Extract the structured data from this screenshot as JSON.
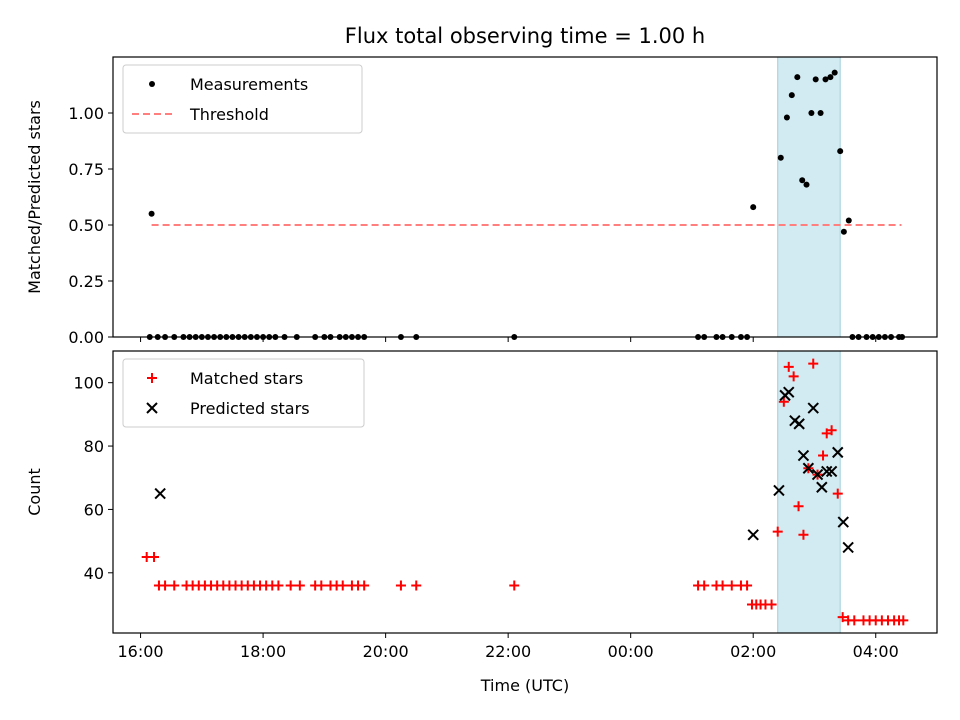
{
  "chart_data": {
    "type": "scatter",
    "title": "Flux total observing time = 1.00 h",
    "xlabel": "Time (UTC)",
    "x_unit": "hours since 16:00 UTC",
    "xlim": [
      -0.45,
      13.0
    ],
    "x_ticks": [
      {
        "value": 0,
        "label": "16:00"
      },
      {
        "value": 2,
        "label": "18:00"
      },
      {
        "value": 4,
        "label": "20:00"
      },
      {
        "value": 6,
        "label": "22:00"
      },
      {
        "value": 8,
        "label": "00:00"
      },
      {
        "value": 10,
        "label": "02:00"
      },
      {
        "value": 12,
        "label": "04:00"
      }
    ],
    "shaded_span": [
      10.4,
      11.42
    ],
    "shade_color": "#add8e6",
    "panels": [
      {
        "id": "ratio",
        "ylabel": "Matched/Predicted stars",
        "ylim": [
          0,
          1.25
        ],
        "y_ticks": [
          {
            "value": 0,
            "label": "0.00"
          },
          {
            "value": 0.25,
            "label": "0.25"
          },
          {
            "value": 0.5,
            "label": "0.50"
          },
          {
            "value": 0.75,
            "label": "0.75"
          },
          {
            "value": 1.0,
            "label": "1.00"
          }
        ],
        "legend": [
          {
            "label": "Measurements",
            "marker": "dot",
            "color": "#000000"
          },
          {
            "label": "Threshold",
            "marker": "dash",
            "color": "#ff7f7f"
          }
        ],
        "threshold": {
          "y": 0.5,
          "x_range": [
            0.18,
            12.42
          ],
          "color": "#ff7f7f"
        },
        "series": [
          {
            "name": "Measurements",
            "marker": "dot",
            "color": "#000000",
            "points": [
              [
                0.18,
                0.55
              ],
              [
                0.15,
                0
              ],
              [
                0.28,
                0
              ],
              [
                0.4,
                0
              ],
              [
                0.55,
                0
              ],
              [
                0.7,
                0
              ],
              [
                0.8,
                0
              ],
              [
                0.9,
                0
              ],
              [
                1.0,
                0
              ],
              [
                1.1,
                0
              ],
              [
                1.2,
                0
              ],
              [
                1.3,
                0
              ],
              [
                1.4,
                0
              ],
              [
                1.5,
                0
              ],
              [
                1.6,
                0
              ],
              [
                1.7,
                0
              ],
              [
                1.8,
                0
              ],
              [
                1.9,
                0
              ],
              [
                2.0,
                0
              ],
              [
                2.1,
                0
              ],
              [
                2.2,
                0
              ],
              [
                2.35,
                0
              ],
              [
                2.55,
                0
              ],
              [
                2.85,
                0
              ],
              [
                3.0,
                0
              ],
              [
                3.1,
                0
              ],
              [
                3.25,
                0
              ],
              [
                3.35,
                0
              ],
              [
                3.45,
                0
              ],
              [
                3.55,
                0
              ],
              [
                3.65,
                0
              ],
              [
                4.25,
                0
              ],
              [
                4.5,
                0
              ],
              [
                6.1,
                0
              ],
              [
                9.1,
                0
              ],
              [
                9.2,
                0
              ],
              [
                9.4,
                0
              ],
              [
                9.5,
                0
              ],
              [
                9.65,
                0
              ],
              [
                9.8,
                0
              ],
              [
                9.9,
                0
              ],
              [
                10.0,
                0.58
              ],
              [
                10.45,
                0.8
              ],
              [
                10.55,
                0.98
              ],
              [
                10.63,
                1.08
              ],
              [
                10.72,
                1.16
              ],
              [
                10.8,
                0.7
              ],
              [
                10.87,
                0.68
              ],
              [
                10.95,
                1.0
              ],
              [
                11.02,
                1.15
              ],
              [
                11.1,
                1.0
              ],
              [
                11.18,
                1.15
              ],
              [
                11.26,
                1.16
              ],
              [
                11.33,
                1.18
              ],
              [
                11.42,
                0.83
              ],
              [
                11.48,
                0.47
              ],
              [
                11.56,
                0.52
              ],
              [
                11.62,
                0
              ],
              [
                11.72,
                0
              ],
              [
                11.85,
                0
              ],
              [
                11.95,
                0
              ],
              [
                12.05,
                0
              ],
              [
                12.15,
                0
              ],
              [
                12.25,
                0
              ],
              [
                12.38,
                0
              ],
              [
                12.43,
                0
              ]
            ]
          }
        ]
      },
      {
        "id": "counts",
        "ylabel": "Count",
        "ylim": [
          21,
          110
        ],
        "y_ticks": [
          {
            "value": 40,
            "label": "40"
          },
          {
            "value": 60,
            "label": "60"
          },
          {
            "value": 80,
            "label": "80"
          },
          {
            "value": 100,
            "label": "100"
          }
        ],
        "legend": [
          {
            "label": "Matched stars",
            "marker": "plus",
            "color": "#ff0000"
          },
          {
            "label": "Predicted stars",
            "marker": "x",
            "color": "#000000"
          }
        ],
        "series": [
          {
            "name": "Matched stars",
            "marker": "plus",
            "color": "#ff0000",
            "points": [
              [
                0.1,
                45
              ],
              [
                0.22,
                45
              ],
              [
                0.3,
                36
              ],
              [
                0.4,
                36
              ],
              [
                0.55,
                36
              ],
              [
                0.75,
                36
              ],
              [
                0.85,
                36
              ],
              [
                0.95,
                36
              ],
              [
                1.05,
                36
              ],
              [
                1.15,
                36
              ],
              [
                1.25,
                36
              ],
              [
                1.35,
                36
              ],
              [
                1.45,
                36
              ],
              [
                1.55,
                36
              ],
              [
                1.65,
                36
              ],
              [
                1.75,
                36
              ],
              [
                1.85,
                36
              ],
              [
                1.95,
                36
              ],
              [
                2.05,
                36
              ],
              [
                2.15,
                36
              ],
              [
                2.25,
                36
              ],
              [
                2.45,
                36
              ],
              [
                2.6,
                36
              ],
              [
                2.85,
                36
              ],
              [
                2.95,
                36
              ],
              [
                3.1,
                36
              ],
              [
                3.2,
                36
              ],
              [
                3.3,
                36
              ],
              [
                3.45,
                36
              ],
              [
                3.55,
                36
              ],
              [
                3.65,
                36
              ],
              [
                4.25,
                36
              ],
              [
                4.5,
                36
              ],
              [
                6.1,
                36
              ],
              [
                9.1,
                36
              ],
              [
                9.2,
                36
              ],
              [
                9.4,
                36
              ],
              [
                9.5,
                36
              ],
              [
                9.65,
                36
              ],
              [
                9.8,
                36
              ],
              [
                9.9,
                36
              ],
              [
                9.98,
                30
              ],
              [
                10.05,
                30
              ],
              [
                10.12,
                30
              ],
              [
                10.2,
                30
              ],
              [
                10.3,
                30
              ],
              [
                10.4,
                53
              ],
              [
                10.5,
                94
              ],
              [
                10.58,
                105
              ],
              [
                10.66,
                102
              ],
              [
                10.74,
                61
              ],
              [
                10.82,
                52
              ],
              [
                10.9,
                73
              ],
              [
                10.98,
                106
              ],
              [
                11.05,
                71
              ],
              [
                11.14,
                77
              ],
              [
                11.2,
                84
              ],
              [
                11.28,
                85
              ],
              [
                11.38,
                65
              ],
              [
                11.46,
                26
              ],
              [
                11.55,
                25
              ],
              [
                11.65,
                25
              ],
              [
                11.8,
                25
              ],
              [
                11.9,
                25
              ],
              [
                12.0,
                25
              ],
              [
                12.1,
                25
              ],
              [
                12.2,
                25
              ],
              [
                12.3,
                25
              ],
              [
                12.38,
                25
              ],
              [
                12.45,
                25
              ]
            ]
          },
          {
            "name": "Predicted stars",
            "marker": "x",
            "color": "#000000",
            "points": [
              [
                0.32,
                65
              ],
              [
                10.0,
                52
              ],
              [
                10.42,
                66
              ],
              [
                10.52,
                96
              ],
              [
                10.58,
                97
              ],
              [
                10.68,
                88
              ],
              [
                10.75,
                87
              ],
              [
                10.82,
                77
              ],
              [
                10.9,
                73
              ],
              [
                10.98,
                92
              ],
              [
                11.05,
                71
              ],
              [
                11.12,
                67
              ],
              [
                11.2,
                72
              ],
              [
                11.28,
                72
              ],
              [
                11.38,
                78
              ],
              [
                11.47,
                56
              ],
              [
                11.55,
                48
              ]
            ]
          }
        ]
      }
    ]
  }
}
